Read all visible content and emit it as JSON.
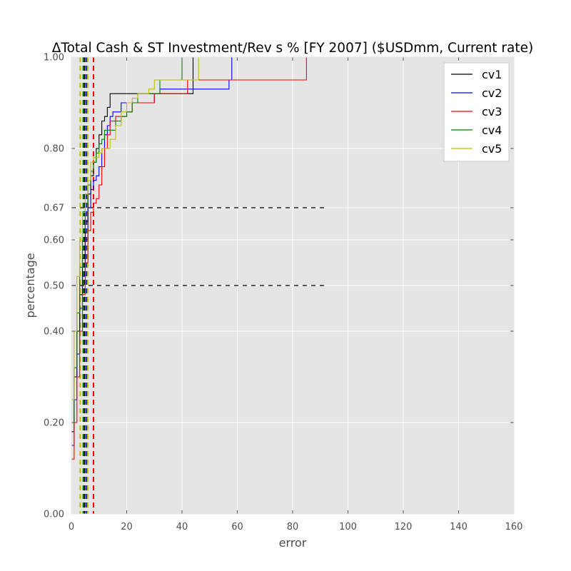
{
  "chart_data": {
    "type": "line",
    "title": "ΔTotal Cash & ST Investment/Rev s % [FY 2007] ($USDmm, Current rate)",
    "xlabel": "error",
    "ylabel": "percentage",
    "xlim": [
      0,
      160
    ],
    "ylim": [
      0,
      1
    ],
    "xticks": [
      0,
      20,
      40,
      60,
      80,
      100,
      120,
      140,
      160
    ],
    "xtick_labels": [
      "0",
      "20",
      "40",
      "60",
      "80",
      "100",
      "120",
      "140",
      "160"
    ],
    "yticks": [
      0.0,
      0.2,
      0.4,
      0.5,
      0.6,
      0.67,
      0.8,
      1.0
    ],
    "ytick_labels": [
      "0.00",
      "0.20",
      "0.40",
      "0.50",
      "0.60",
      "0.67",
      "0.80",
      "1.00"
    ],
    "y_scale": "nonlinear (tick positions as drawn)",
    "grid": true,
    "legend_position": "top-right",
    "reference_lines": {
      "horizontal": [
        {
          "y": 0.67,
          "x_end": 92,
          "color": "#000000",
          "style": "dashed"
        },
        {
          "y": 0.5,
          "x_end": 92,
          "color": "#000000",
          "style": "dashed"
        }
      ],
      "vertical": [
        {
          "x": 3.2,
          "color": "#bfbf00"
        },
        {
          "x": 4.3,
          "color": "#008000"
        },
        {
          "x": 4.8,
          "color": "#000000"
        },
        {
          "x": 5.5,
          "color": "#0000ff"
        },
        {
          "x": 5.9,
          "color": "#bfbf00"
        },
        {
          "x": 8.0,
          "color": "#ff0000"
        }
      ]
    },
    "series": [
      {
        "name": "cv1",
        "color": "#000000",
        "x": [
          0,
          1,
          2,
          3,
          4,
          5,
          6,
          7,
          8,
          9,
          10,
          11,
          12,
          13,
          14,
          42,
          44
        ],
        "y": [
          0.18,
          0.3,
          0.4,
          0.48,
          0.56,
          0.64,
          0.7,
          0.74,
          0.77,
          0.8,
          0.83,
          0.86,
          0.87,
          0.89,
          0.92,
          0.92,
          0.97
        ]
      },
      {
        "name": "cv2",
        "color": "#0000ff",
        "x": [
          0,
          1,
          2,
          3,
          4,
          5,
          6,
          7,
          8,
          9,
          10,
          11,
          12,
          13,
          14,
          15,
          16,
          18,
          20,
          28,
          30,
          32,
          40,
          57,
          58
        ],
        "y": [
          0.15,
          0.25,
          0.35,
          0.45,
          0.52,
          0.6,
          0.67,
          0.71,
          0.73,
          0.74,
          0.76,
          0.8,
          0.83,
          0.85,
          0.87,
          0.88,
          0.88,
          0.9,
          0.9,
          0.9,
          0.92,
          0.93,
          0.93,
          0.95,
          0.97
        ]
      },
      {
        "name": "cv3",
        "color": "#ff0000",
        "x": [
          0,
          1,
          2,
          3,
          4,
          5,
          6,
          7,
          8,
          9,
          10,
          11,
          12,
          13,
          14,
          16,
          18,
          20,
          22,
          28,
          30,
          40,
          42,
          84,
          85
        ],
        "y": [
          0.12,
          0.2,
          0.3,
          0.4,
          0.48,
          0.55,
          0.62,
          0.66,
          0.68,
          0.69,
          0.72,
          0.76,
          0.8,
          0.83,
          0.86,
          0.87,
          0.87,
          0.88,
          0.9,
          0.9,
          0.92,
          0.92,
          0.95,
          0.95,
          0.97
        ]
      },
      {
        "name": "cv4",
        "color": "#008000",
        "x": [
          0,
          1,
          2,
          3,
          4,
          5,
          6,
          7,
          8,
          9,
          10,
          11,
          12,
          15,
          16,
          17,
          18,
          20,
          22,
          24,
          30,
          32,
          40
        ],
        "y": [
          0.2,
          0.32,
          0.44,
          0.54,
          0.62,
          0.68,
          0.72,
          0.75,
          0.77,
          0.79,
          0.81,
          0.82,
          0.84,
          0.84,
          0.86,
          0.86,
          0.87,
          0.88,
          0.9,
          0.92,
          0.92,
          0.95,
          0.95
        ]
      },
      {
        "name": "cv5",
        "color": "#bfbf00",
        "x": [
          0,
          1,
          2,
          3,
          4,
          5,
          6,
          7,
          8,
          9,
          10,
          11,
          12,
          14,
          16,
          18,
          20,
          22,
          24,
          28,
          30,
          44,
          46
        ],
        "y": [
          0.25,
          0.4,
          0.52,
          0.6,
          0.66,
          0.7,
          0.73,
          0.77,
          0.78,
          0.78,
          0.79,
          0.8,
          0.8,
          0.82,
          0.85,
          0.88,
          0.9,
          0.91,
          0.92,
          0.93,
          0.95,
          0.95,
          0.97
        ]
      }
    ]
  }
}
